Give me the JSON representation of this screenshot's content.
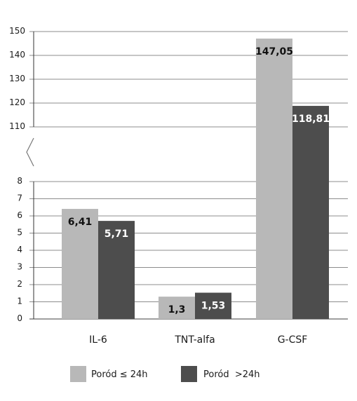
{
  "chart_data": {
    "type": "bar",
    "categories": [
      "IL-6",
      "TNT-alfa",
      "G-CSF"
    ],
    "series": [
      {
        "name": "Poród ≤ 24h",
        "values": [
          6.41,
          1.3,
          147.05
        ],
        "labels": [
          "6,41",
          "1,3",
          "147,05"
        ]
      },
      {
        "name": "Poród  >24h",
        "values": [
          5.71,
          1.53,
          118.81
        ],
        "labels": [
          "5,71",
          "1,53",
          "118,81"
        ]
      }
    ],
    "axis_break": true,
    "y_lower": {
      "ylim": [
        0,
        8
      ],
      "ticks": [
        "0",
        "1",
        "2",
        "3",
        "4",
        "5",
        "6",
        "7",
        "8"
      ]
    },
    "y_upper": {
      "ylim": [
        110,
        150
      ],
      "ticks": [
        "110",
        "120",
        "130",
        "140",
        "150"
      ]
    },
    "grid": true,
    "legend_position": "bottom",
    "colors": {
      "series1": "#b8b8b8",
      "series2": "#4d4d4d",
      "grid": "#8c8c8c"
    }
  }
}
